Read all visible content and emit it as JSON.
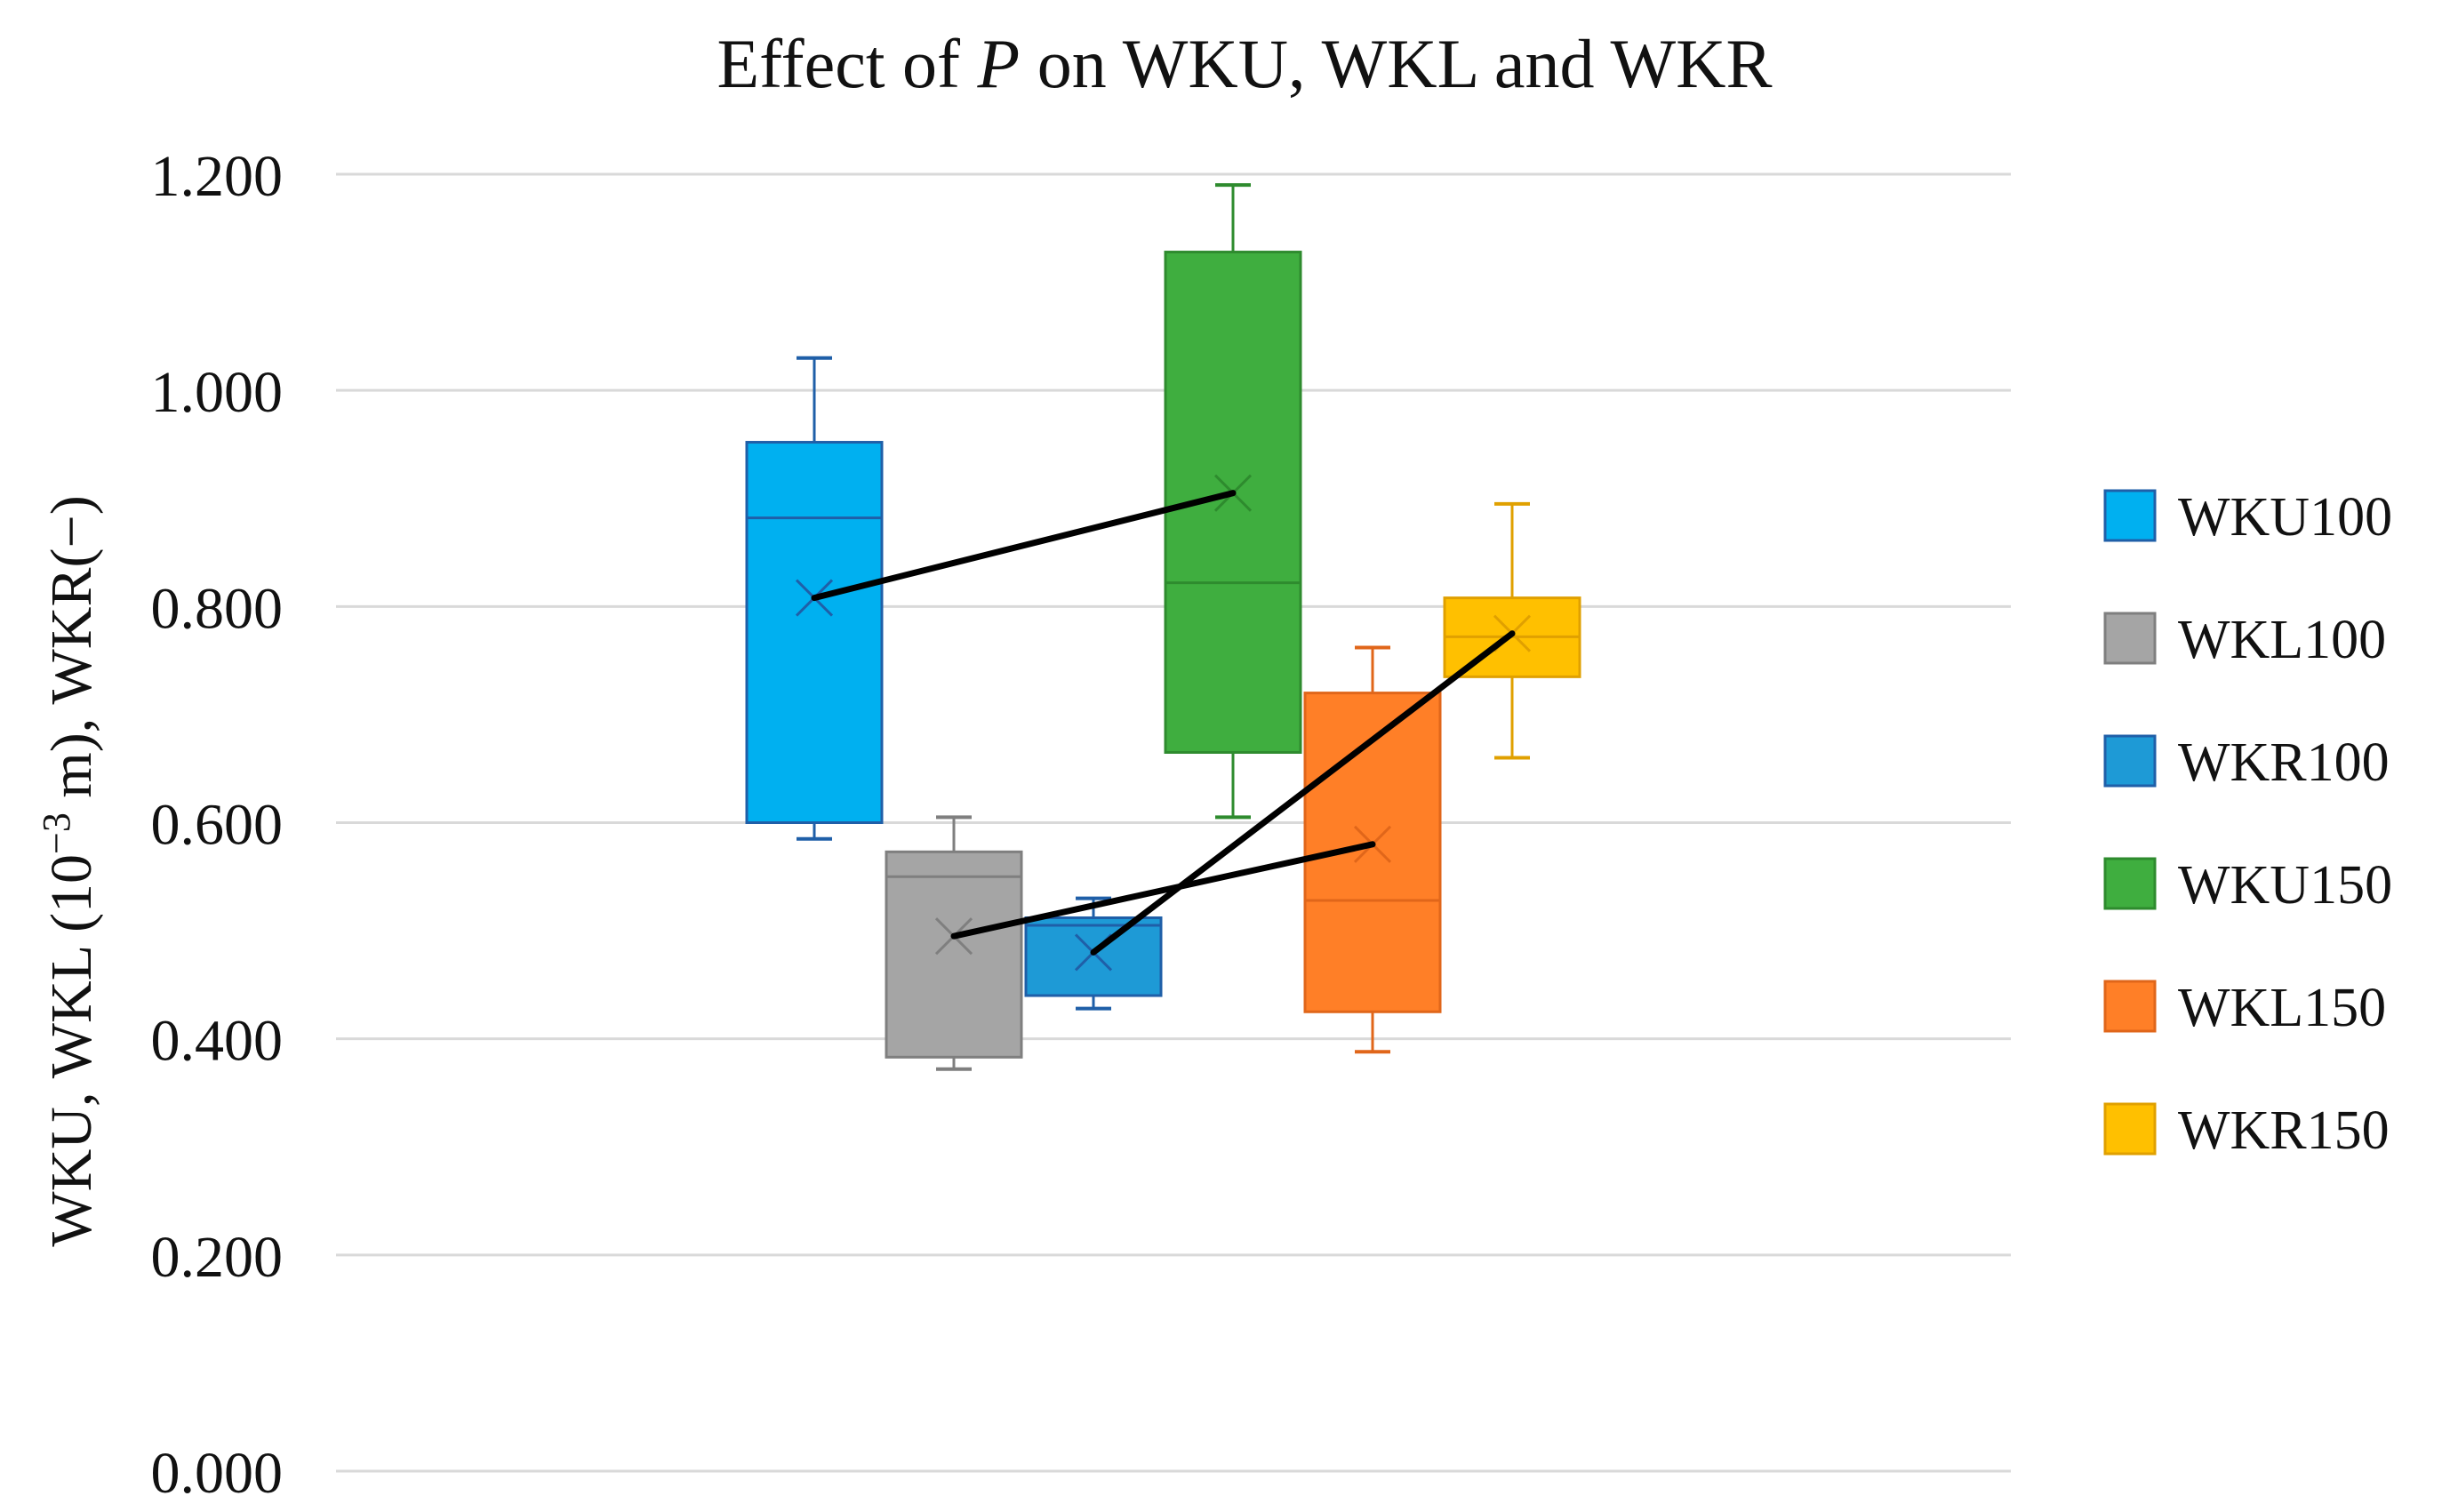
{
  "chart_data": {
    "type": "box",
    "title_prefix": "Effect of ",
    "title_italic": "P",
    "title_suffix": " on WKU, WKL and WKR",
    "ylabel_pre": "WKU, WKL (10",
    "ylabel_sup": "−3",
    "ylabel_post": " m), WKR(−)",
    "ylim": [
      0,
      1.2
    ],
    "yticks": [
      "0.000",
      "0.200",
      "0.400",
      "0.600",
      "0.800",
      "1.000",
      "1.200"
    ],
    "grid": true,
    "legend_position": "right",
    "series": [
      {
        "name": "WKU100",
        "color": "#00B0F0",
        "edge": "#1F5FA8",
        "min": 0.585,
        "q1": 0.6,
        "median": 0.882,
        "q3": 0.952,
        "max": 1.03,
        "mean": 0.808
      },
      {
        "name": "WKL100",
        "color": "#A5A5A5",
        "edge": "#7F7F7F",
        "min": 0.372,
        "q1": 0.383,
        "median": 0.55,
        "q3": 0.573,
        "max": 0.605,
        "mean": 0.495
      },
      {
        "name": "WKR100",
        "color": "#1E9AD6",
        "edge": "#1F5FA8",
        "min": 0.428,
        "q1": 0.44,
        "median": 0.505,
        "q3": 0.512,
        "max": 0.53,
        "mean": 0.48
      },
      {
        "name": "WKU150",
        "color": "#3FAE3F",
        "edge": "#2E8B2E",
        "min": 0.605,
        "q1": 0.665,
        "median": 0.822,
        "q3": 1.128,
        "max": 1.19,
        "mean": 0.905
      },
      {
        "name": "WKL150",
        "color": "#FF7F27",
        "edge": "#E0661A",
        "min": 0.388,
        "q1": 0.425,
        "median": 0.528,
        "q3": 0.72,
        "max": 0.762,
        "mean": 0.58
      },
      {
        "name": "WKR150",
        "color": "#FFC000",
        "edge": "#E0A000",
        "min": 0.66,
        "q1": 0.735,
        "median": 0.772,
        "q3": 0.808,
        "max": 0.895,
        "mean": 0.775
      }
    ],
    "connectors": [
      [
        0,
        3
      ],
      [
        1,
        4
      ],
      [
        2,
        5
      ]
    ]
  }
}
